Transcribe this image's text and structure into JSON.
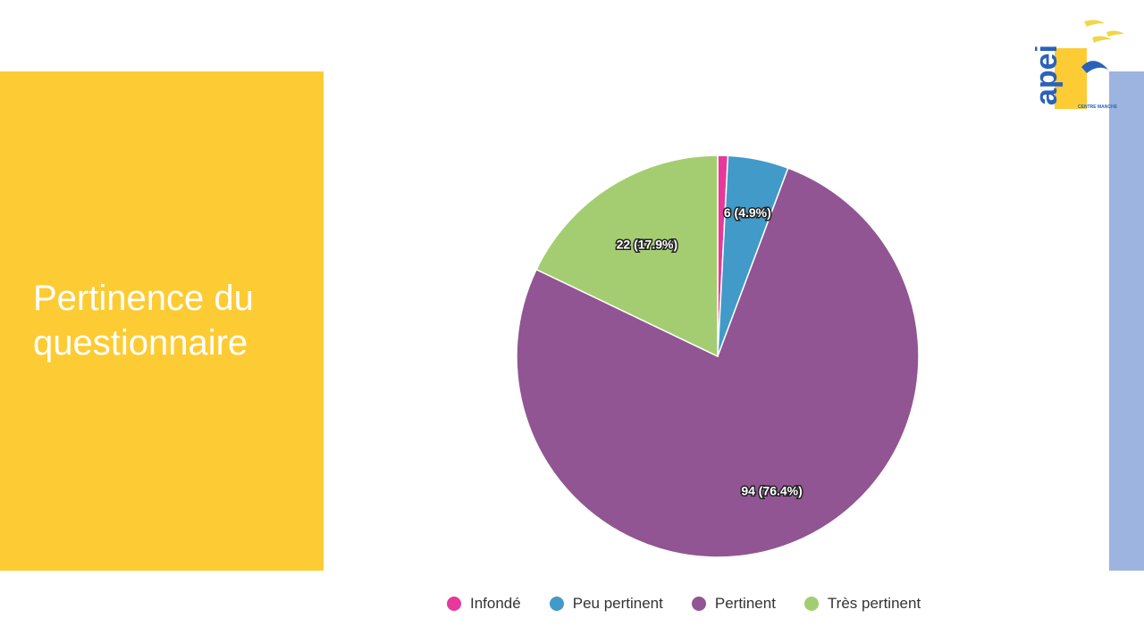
{
  "slide": {
    "title": "Pertinence du questionnaire",
    "panel_color": "#fdcb33",
    "accent_bar_color": "#9db3e0"
  },
  "logo": {
    "name": "apei",
    "subtitle": "CENTRE MANCHE"
  },
  "chart_data": {
    "type": "pie",
    "title": "",
    "categories": [
      "Infondé",
      "Peu pertinent",
      "Pertinent",
      "Très pertinent"
    ],
    "values": [
      1,
      6,
      94,
      22
    ],
    "colors": [
      "#e6399b",
      "#429ac8",
      "#915593",
      "#a4cd72"
    ],
    "data_labels": [
      "",
      "6 (4.9%)",
      "94 (76.4%)",
      "22 (17.9%)"
    ],
    "legend_position": "bottom"
  }
}
